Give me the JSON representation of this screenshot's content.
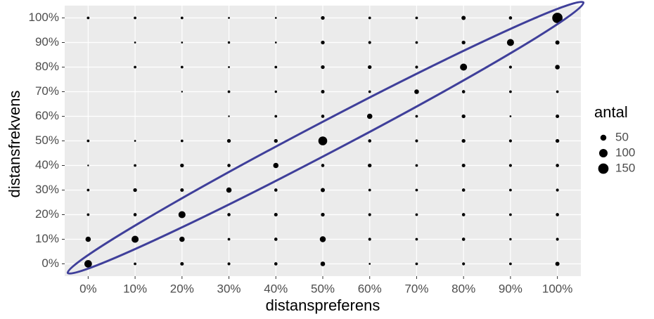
{
  "chart_data": {
    "type": "scatter",
    "x_label": "distanspreferens",
    "y_label": "distansfrekvens",
    "xlim": [
      -5,
      105
    ],
    "ylim": [
      -5,
      105
    ],
    "xticks": [
      {
        "value": 0,
        "label": "0%"
      },
      {
        "value": 10,
        "label": "10%"
      },
      {
        "value": 20,
        "label": "20%"
      },
      {
        "value": 30,
        "label": "30%"
      },
      {
        "value": 40,
        "label": "40%"
      },
      {
        "value": 50,
        "label": "50%"
      },
      {
        "value": 60,
        "label": "60%"
      },
      {
        "value": 70,
        "label": "70%"
      },
      {
        "value": 80,
        "label": "80%"
      },
      {
        "value": 90,
        "label": "90%"
      },
      {
        "value": 100,
        "label": "100%"
      }
    ],
    "yticks": [
      {
        "value": 0,
        "label": "0%"
      },
      {
        "value": 10,
        "label": "10%"
      },
      {
        "value": 20,
        "label": "20%"
      },
      {
        "value": 30,
        "label": "30%"
      },
      {
        "value": 40,
        "label": "40%"
      },
      {
        "value": 50,
        "label": "50%"
      },
      {
        "value": 60,
        "label": "60%"
      },
      {
        "value": 70,
        "label": "70%"
      },
      {
        "value": 80,
        "label": "80%"
      },
      {
        "value": 90,
        "label": "90%"
      },
      {
        "value": 100,
        "label": "100%"
      }
    ],
    "grid": true,
    "color": "#000000",
    "x": [
      0,
      10,
      20,
      30,
      40,
      50,
      60,
      70,
      80,
      90,
      100,
      10,
      20,
      30,
      40,
      50,
      60,
      70,
      80,
      90,
      100,
      10,
      20,
      30,
      40,
      50,
      60,
      70,
      80,
      90,
      100,
      20,
      30,
      40,
      50,
      60,
      70,
      80,
      90,
      100,
      30,
      40,
      50,
      60,
      70,
      80,
      90,
      100,
      0,
      10,
      20,
      30,
      40,
      50,
      60,
      70,
      80,
      90,
      100,
      0,
      10,
      20,
      30,
      40,
      50,
      60,
      70,
      80,
      90,
      100,
      0,
      10,
      20,
      30,
      40,
      50,
      60,
      70,
      80,
      90,
      100,
      0,
      10,
      20,
      30,
      40,
      50,
      60,
      70,
      80,
      90,
      100,
      0,
      10,
      20,
      30,
      40,
      50,
      60,
      70,
      80,
      90,
      100,
      0,
      10,
      20,
      30,
      40,
      50,
      60,
      70,
      80,
      90,
      100
    ],
    "y": [
      100,
      100,
      100,
      100,
      100,
      100,
      100,
      100,
      100,
      100,
      100,
      90,
      90,
      90,
      90,
      90,
      90,
      90,
      90,
      90,
      90,
      80,
      80,
      80,
      80,
      80,
      80,
      80,
      80,
      80,
      80,
      70,
      70,
      70,
      70,
      70,
      70,
      70,
      70,
      70,
      60,
      60,
      60,
      60,
      60,
      60,
      60,
      60,
      50,
      50,
      50,
      50,
      50,
      50,
      50,
      50,
      50,
      50,
      50,
      40,
      40,
      40,
      40,
      40,
      40,
      40,
      40,
      40,
      40,
      40,
      30,
      30,
      30,
      30,
      30,
      30,
      30,
      30,
      30,
      30,
      30,
      20,
      20,
      20,
      20,
      20,
      20,
      20,
      20,
      20,
      20,
      20,
      10,
      10,
      10,
      10,
      10,
      10,
      10,
      10,
      10,
      10,
      10,
      0,
      0,
      0,
      0,
      0,
      0,
      0,
      0,
      0,
      0,
      0
    ],
    "sizes": [
      10,
      10,
      10,
      5,
      5,
      20,
      10,
      10,
      25,
      15,
      150,
      5,
      5,
      8,
      5,
      20,
      12,
      10,
      20,
      70,
      25,
      10,
      10,
      5,
      10,
      20,
      20,
      12,
      70,
      12,
      30,
      4,
      10,
      8,
      18,
      10,
      30,
      15,
      10,
      10,
      4,
      10,
      15,
      40,
      10,
      20,
      5,
      18,
      10,
      5,
      10,
      20,
      20,
      110,
      15,
      12,
      20,
      12,
      20,
      4,
      10,
      20,
      15,
      40,
      15,
      20,
      10,
      18,
      12,
      15,
      10,
      20,
      18,
      40,
      15,
      25,
      10,
      10,
      15,
      10,
      12,
      10,
      15,
      70,
      15,
      18,
      20,
      12,
      10,
      15,
      10,
      15,
      40,
      70,
      40,
      10,
      15,
      50,
      12,
      10,
      15,
      8,
      12,
      80,
      10,
      18,
      12,
      15,
      30,
      5,
      10,
      12,
      10,
      25
    ],
    "size_legend": {
      "title": "antal",
      "values": [
        50,
        100,
        150
      ]
    }
  }
}
